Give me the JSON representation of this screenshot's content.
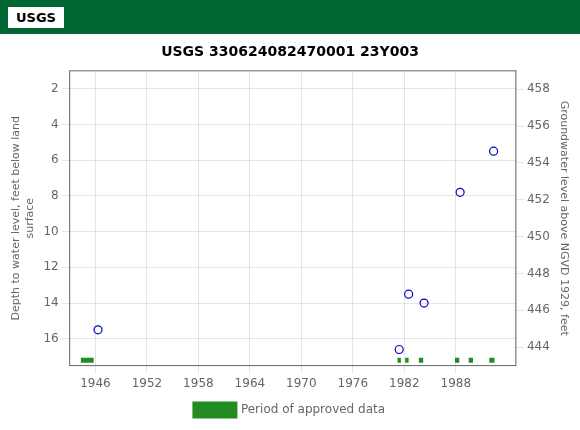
{
  "chart_data": {
    "type": "scatter",
    "title": "USGS 330624082470001 23Y003",
    "annotations": [
      "USGS"
    ],
    "header_color": "#006633",
    "ylabel": "Depth to water level, feet below land\nsurface",
    "y2label": "Groundwater level above NGVD 1929, feet",
    "xlim": [
      1943,
      1995
    ],
    "xticks": [
      1946,
      1952,
      1958,
      1964,
      1970,
      1976,
      1982,
      1988
    ],
    "ylim": [
      17.5,
      1.0
    ],
    "yticks": [
      2,
      4,
      6,
      8,
      10,
      12,
      14,
      16
    ],
    "y2lim": [
      443.0,
      459.0
    ],
    "y2ticks": [
      444,
      446,
      448,
      450,
      452,
      454,
      456,
      458
    ],
    "grid": true,
    "legend": "bottom",
    "series": [
      {
        "type": "scatter",
        "color": "#0000cc",
        "marker": "open_circle",
        "x": [
          1946.3,
          1981.4,
          1982.5,
          1984.3,
          1988.5,
          1992.4
        ],
        "values": [
          15.5,
          16.6,
          13.5,
          14.0,
          7.8,
          5.5
        ]
      },
      {
        "name": "Period of approved data",
        "type": "line",
        "color": "#228B22",
        "line_style": "solid",
        "y": 17.2,
        "periods": [
          [
            1944.3,
            1945.8
          ],
          [
            1981.2,
            1981.6
          ],
          [
            1982.1,
            1982.5
          ],
          [
            1983.7,
            1984.2
          ],
          [
            1987.9,
            1988.4
          ],
          [
            1989.5,
            1990.0
          ],
          [
            1991.9,
            1992.5
          ]
        ]
      }
    ]
  }
}
